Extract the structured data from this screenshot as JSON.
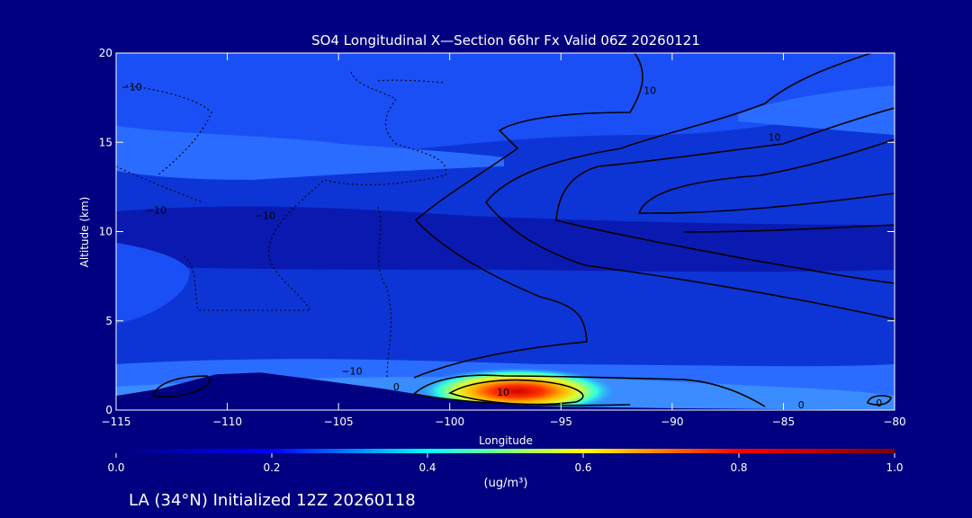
{
  "chart_data": {
    "type": "heatmap",
    "title": "SO4 Longitudinal X—Section 66hr  Fx Valid 06Z 20260121",
    "xlabel": "Longitude",
    "ylabel": "Altitude (km)",
    "xlim": [
      -115,
      -80
    ],
    "ylim": [
      0,
      20
    ],
    "x_ticks": [
      -115,
      -110,
      -105,
      -100,
      -95,
      -90,
      -85,
      -80
    ],
    "x_tick_labels": [
      "−115",
      "−110",
      "−105",
      "−100",
      "−95",
      "−90",
      "−85",
      "−80"
    ],
    "y_ticks": [
      0,
      5,
      10,
      15,
      20
    ],
    "y_tick_labels": [
      "0",
      "5",
      "10",
      "15",
      "20"
    ],
    "colorbar": {
      "min": 0.0,
      "max": 1.0,
      "ticks": [
        0.0,
        0.2,
        0.4,
        0.6,
        0.8,
        1.0
      ],
      "tick_labels": [
        "0.0",
        "0.2",
        "0.4",
        "0.6",
        "0.8",
        "1.0"
      ],
      "unit_label": "(ug/m³)",
      "colors": [
        "#000080",
        "#0000ff",
        "#00ffff",
        "#ffff00",
        "#ff0000",
        "#800000"
      ]
    },
    "field_bands": [
      {
        "value": 0.06,
        "color": "#0a1ab0"
      },
      {
        "value": 0.1,
        "color": "#0d35d6"
      },
      {
        "value": 0.14,
        "color": "#1a4ff5"
      },
      {
        "value": 0.18,
        "color": "#2a6cff"
      }
    ],
    "peak": {
      "lon": -96.5,
      "alt": 1.0,
      "value": 0.85
    },
    "contour_labels": [
      {
        "text": "−10",
        "lon": -114.3,
        "alt": 18.1
      },
      {
        "text": "−10",
        "lon": -113.2,
        "alt": 11.2
      },
      {
        "text": "−10",
        "lon": -108.3,
        "alt": 10.9
      },
      {
        "text": "−10",
        "lon": -104.4,
        "alt": 2.2
      },
      {
        "text": "0",
        "lon": -102.4,
        "alt": 1.3
      },
      {
        "text": "10",
        "lon": -97.6,
        "alt": 1.0
      },
      {
        "text": "10",
        "lon": -91.0,
        "alt": 17.9
      },
      {
        "text": "10",
        "lon": -85.4,
        "alt": 15.3
      },
      {
        "text": "0",
        "lon": -84.2,
        "alt": 0.3
      },
      {
        "text": "0",
        "lon": -80.7,
        "alt": 0.4
      }
    ],
    "terrain": [
      [
        -115,
        0.8
      ],
      [
        -113,
        1.2
      ],
      [
        -110.5,
        2.0
      ],
      [
        -108.5,
        2.1
      ],
      [
        -106,
        1.7
      ],
      [
        -103,
        1.2
      ],
      [
        -100,
        0.6
      ],
      [
        -97,
        0.3
      ],
      [
        -95,
        0.2
      ],
      [
        -90,
        0.1
      ],
      [
        -85,
        0.05
      ],
      [
        -80,
        0.0
      ]
    ]
  },
  "footer": {
    "title": "LA (34°N) Initialized 12Z 20260118"
  },
  "colors": {
    "background": "#000080",
    "axis": "#ffffff"
  }
}
